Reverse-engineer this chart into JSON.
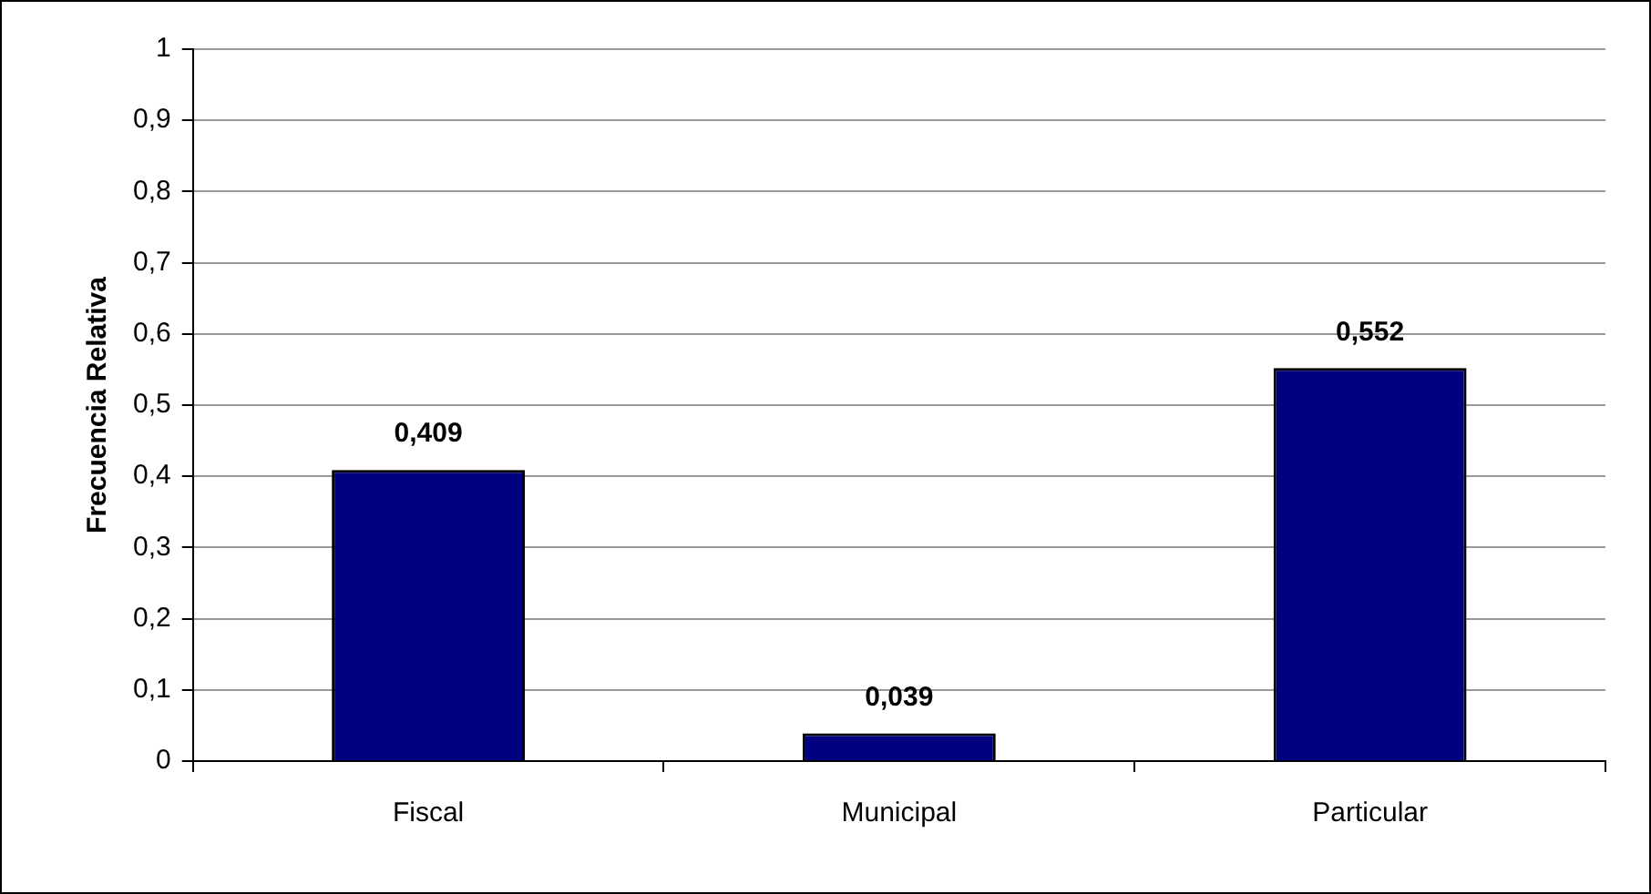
{
  "chart_data": {
    "type": "bar",
    "ylabel": "Frecuencia Relativa",
    "categories": [
      "Fiscal",
      "Municipal",
      "Particular"
    ],
    "values": [
      0.409,
      0.039,
      0.552
    ],
    "value_labels": [
      "0,409",
      "0,039",
      "0,552"
    ],
    "color": "#000080",
    "ylim": [
      0,
      1
    ],
    "yticks": [
      {
        "value": 0,
        "label": "0"
      },
      {
        "value": 0.1,
        "label": "0,1"
      },
      {
        "value": 0.2,
        "label": "0,2"
      },
      {
        "value": 0.3,
        "label": "0,3"
      },
      {
        "value": 0.4,
        "label": "0,4"
      },
      {
        "value": 0.5,
        "label": "0,5"
      },
      {
        "value": 0.6,
        "label": "0,6"
      },
      {
        "value": 0.7,
        "label": "0,7"
      },
      {
        "value": 0.8,
        "label": "0,8"
      },
      {
        "value": 0.9,
        "label": "0,9"
      },
      {
        "value": 1,
        "label": "1"
      }
    ],
    "grid": "y",
    "legend": false
  }
}
